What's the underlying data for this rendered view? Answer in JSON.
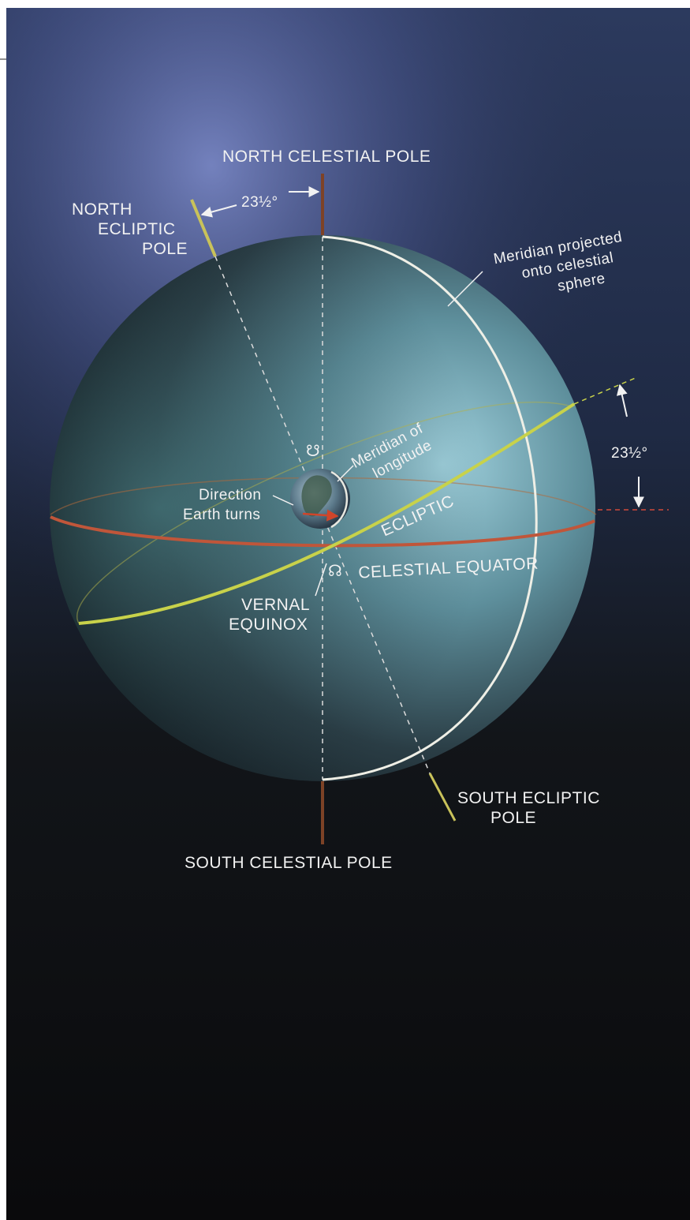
{
  "labels": {
    "north_celestial_pole": "NORTH CELESTIAL POLE",
    "south_celestial_pole": "SOUTH CELESTIAL POLE",
    "north_ecliptic_pole": [
      "NORTH",
      "ECLIPTIC",
      "POLE"
    ],
    "south_ecliptic_pole": [
      "SOUTH ECLIPTIC",
      "POLE"
    ],
    "meridian_projected": [
      "Meridian projected",
      "onto celestial",
      "sphere"
    ],
    "meridian_of_longitude": [
      "Meridian of",
      "longitude"
    ],
    "direction_earth_turns": [
      "Direction",
      "Earth turns"
    ],
    "ecliptic": "ECLIPTIC",
    "celestial_equator": "CELESTIAL EQUATOR",
    "vernal_equinox": [
      "VERNAL",
      "EQUINOX"
    ],
    "tilt_top": "23½°",
    "tilt_right": "23½°",
    "ascending_node_symbol": "☊",
    "descending_node_symbol": "☋"
  },
  "colors": {
    "background_top": "#3d4e78",
    "background_bottom": "#0a0a0c",
    "sphere_light": "#8fc2cf",
    "sphere_dark": "#121c22",
    "celestial_axis": "#8a4a2a",
    "ecliptic_axis": "#c9c25a",
    "ecliptic_line": "#c8d24a",
    "equator_line": "#c0563a",
    "meridian_line": "#f0f0ea"
  },
  "angles": {
    "obliquity_deg": 23.5
  }
}
